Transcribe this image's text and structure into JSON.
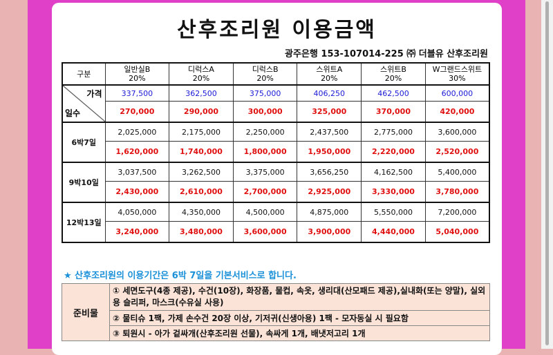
{
  "title": "산후조리원 이용금액",
  "bank_info": "광주은행 153-107014-225 ㈜ 더블유 산후조리원",
  "table": {
    "corner_label": "구분",
    "diag_top": "가격",
    "diag_bottom": "일수",
    "rooms": [
      {
        "name": "일반실B",
        "discount": "20%",
        "price": "337,500",
        "sale": "270,000"
      },
      {
        "name": "디럭스A",
        "discount": "20%",
        "price": "362,500",
        "sale": "290,000"
      },
      {
        "name": "디럭스B",
        "discount": "20%",
        "price": "375,000",
        "sale": "300,000"
      },
      {
        "name": "스위트A",
        "discount": "20%",
        "price": "406,250",
        "sale": "325,000"
      },
      {
        "name": "스위트B",
        "discount": "20%",
        "price": "462,500",
        "sale": "370,000"
      },
      {
        "name": "W그랜드스위트",
        "discount": "30%",
        "price": "600,000",
        "sale": "420,000"
      }
    ],
    "periods": [
      {
        "label": "6박7일",
        "regular": [
          "2,025,000",
          "2,175,000",
          "2,250,000",
          "2,437,500",
          "2,775,000",
          "3,600,000"
        ],
        "sale": [
          "1,620,000",
          "1,740,000",
          "1,800,000",
          "1,950,000",
          "2,220,000",
          "2,520,000"
        ]
      },
      {
        "label": "9박10일",
        "regular": [
          "3,037,500",
          "3,262,500",
          "3,375,000",
          "3,656,250",
          "4,162,500",
          "5,400,000"
        ],
        "sale": [
          "2,430,000",
          "2,610,000",
          "2,700,000",
          "2,925,000",
          "3,330,000",
          "3,780,000"
        ]
      },
      {
        "label": "12박13일",
        "regular": [
          "4,050,000",
          "4,350,000",
          "4,500,000",
          "4,875,000",
          "5,550,000",
          "7,200,000"
        ],
        "sale": [
          "3,240,000",
          "3,480,000",
          "3,600,000",
          "3,900,000",
          "4,440,000",
          "5,040,000"
        ]
      }
    ]
  },
  "notice": "★ 산후조리원의 이용기간은 6박 7일을 기본서비스로 합니다.",
  "prep": {
    "label": "준비물",
    "item1": "① 세면도구(4종 제공), 수건(10장), 화장품, 물컵, 속옷, 생리대(산모패드 제공),실내화(또는 양말),              실외용 슬리퍼, 마스크(수유실 사용)",
    "item2": "② 물티슈 1팩, 가제 손수건 20장 이상, 기저귀(신생아용) 1팩 - 모자동실 시 필요함",
    "item3": "③ 퇴원시 - 아가 겉싸개(산후조리원 선물), 속싸게 1개, 배냇저고리 1개"
  }
}
